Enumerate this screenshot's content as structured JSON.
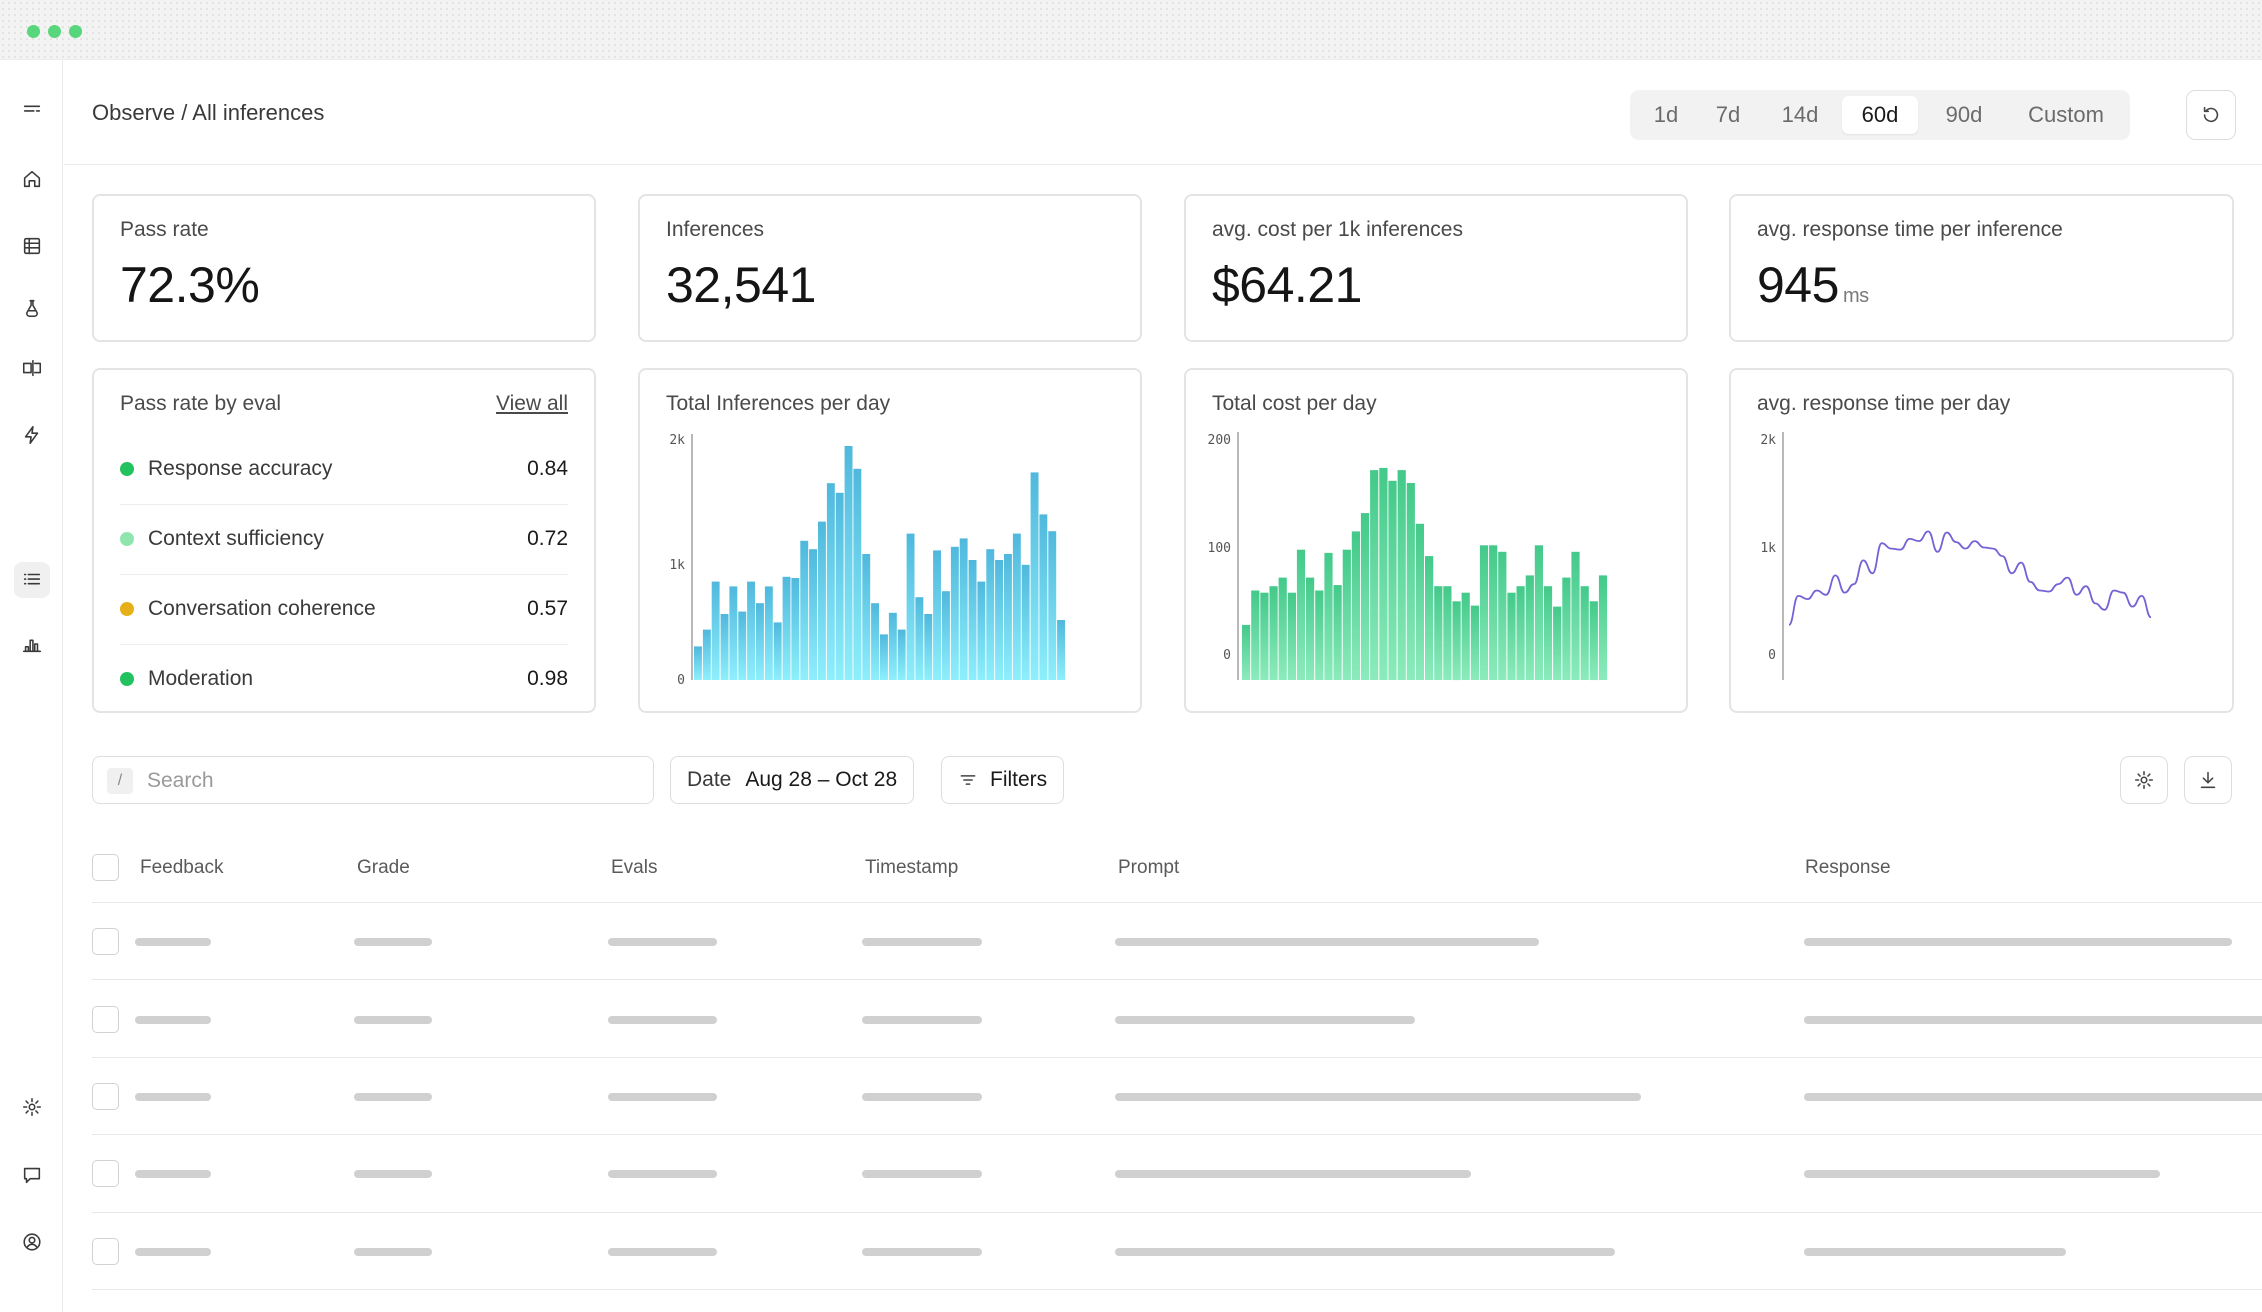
{
  "breadcrumb": "Observe / All inferences",
  "time_ranges": [
    "1d",
    "7d",
    "14d",
    "60d",
    "90d",
    "Custom"
  ],
  "active_range": "60d",
  "metrics": [
    {
      "label": "Pass rate",
      "value": "72.3%",
      "unit": ""
    },
    {
      "label": "Inferences",
      "value": "32,541",
      "unit": ""
    },
    {
      "label": "avg. cost per 1k inferences",
      "value": "$64.21",
      "unit": ""
    },
    {
      "label": "avg. response time per inference",
      "value": "945",
      "unit": "ms"
    }
  ],
  "pass_rate_by_eval": {
    "title": "Pass rate by eval",
    "view_all": "View all",
    "items": [
      {
        "name": "Response accuracy",
        "value": "0.84",
        "color": "#22c35e"
      },
      {
        "name": "Context sufficiency",
        "value": "0.72",
        "color": "#8ee6ae"
      },
      {
        "name": "Conversation coherence",
        "value": "0.57",
        "color": "#e6b118"
      },
      {
        "name": "Moderation",
        "value": "0.98",
        "color": "#22c35e"
      }
    ]
  },
  "chart_titles": {
    "inferences": "Total Inferences per day",
    "cost": "Total cost per day",
    "response": "avg. response time per day"
  },
  "toolbar": {
    "search_placeholder": "Search",
    "search_shortcut": "/",
    "date_label": "Date",
    "date_value": "Aug 28 – Oct 28",
    "filters_label": "Filters"
  },
  "table": {
    "columns": [
      "Feedback",
      "Grade",
      "Evals",
      "Timestamp",
      "Prompt",
      "Response"
    ]
  },
  "chart_data": [
    {
      "type": "bar",
      "title": "Total Inferences per day",
      "ylim": [
        0,
        2000
      ],
      "yticks": [
        "0",
        "1k",
        "2k"
      ],
      "gradient": [
        "#4fb8dc",
        "#8eeffc"
      ],
      "values": [
        280,
        420,
        820,
        550,
        780,
        570,
        820,
        640,
        780,
        480,
        860,
        850,
        1160,
        1090,
        1320,
        1640,
        1560,
        1950,
        1760,
        1050,
        640,
        380,
        560,
        420,
        1220,
        690,
        550,
        1080,
        740,
        1110,
        1180,
        1000,
        820,
        1090,
        1000,
        1050,
        1220,
        960,
        1730,
        1380,
        1240,
        500
      ]
    },
    {
      "type": "bar",
      "title": "Total cost per day",
      "ylim": [
        0,
        200
      ],
      "yticks": [
        "0",
        "100",
        "200"
      ],
      "gradient": [
        "#43c98a",
        "#8cebbc"
      ],
      "values": [
        28,
        60,
        58,
        64,
        72,
        58,
        98,
        72,
        60,
        95,
        65,
        98,
        115,
        132,
        172,
        174,
        162,
        172,
        160,
        122,
        92,
        64,
        64,
        50,
        58,
        46,
        102,
        102,
        96,
        58,
        64,
        74,
        102,
        64,
        45,
        72,
        96,
        64,
        50,
        74
      ]
    },
    {
      "type": "line",
      "title": "avg. response time per day",
      "ylim": [
        0,
        2000
      ],
      "yticks": [
        "0",
        "1k",
        "2k"
      ],
      "color": "#7463d6",
      "values": [
        280,
        550,
        520,
        600,
        560,
        740,
        580,
        660,
        880,
        760,
        1040,
        990,
        980,
        1080,
        1060,
        1150,
        960,
        1140,
        1050,
        990,
        1060,
        1000,
        990,
        920,
        760,
        860,
        680,
        600,
        590,
        660,
        720,
        560,
        640,
        480,
        420,
        600,
        580,
        450,
        550,
        350
      ]
    }
  ]
}
